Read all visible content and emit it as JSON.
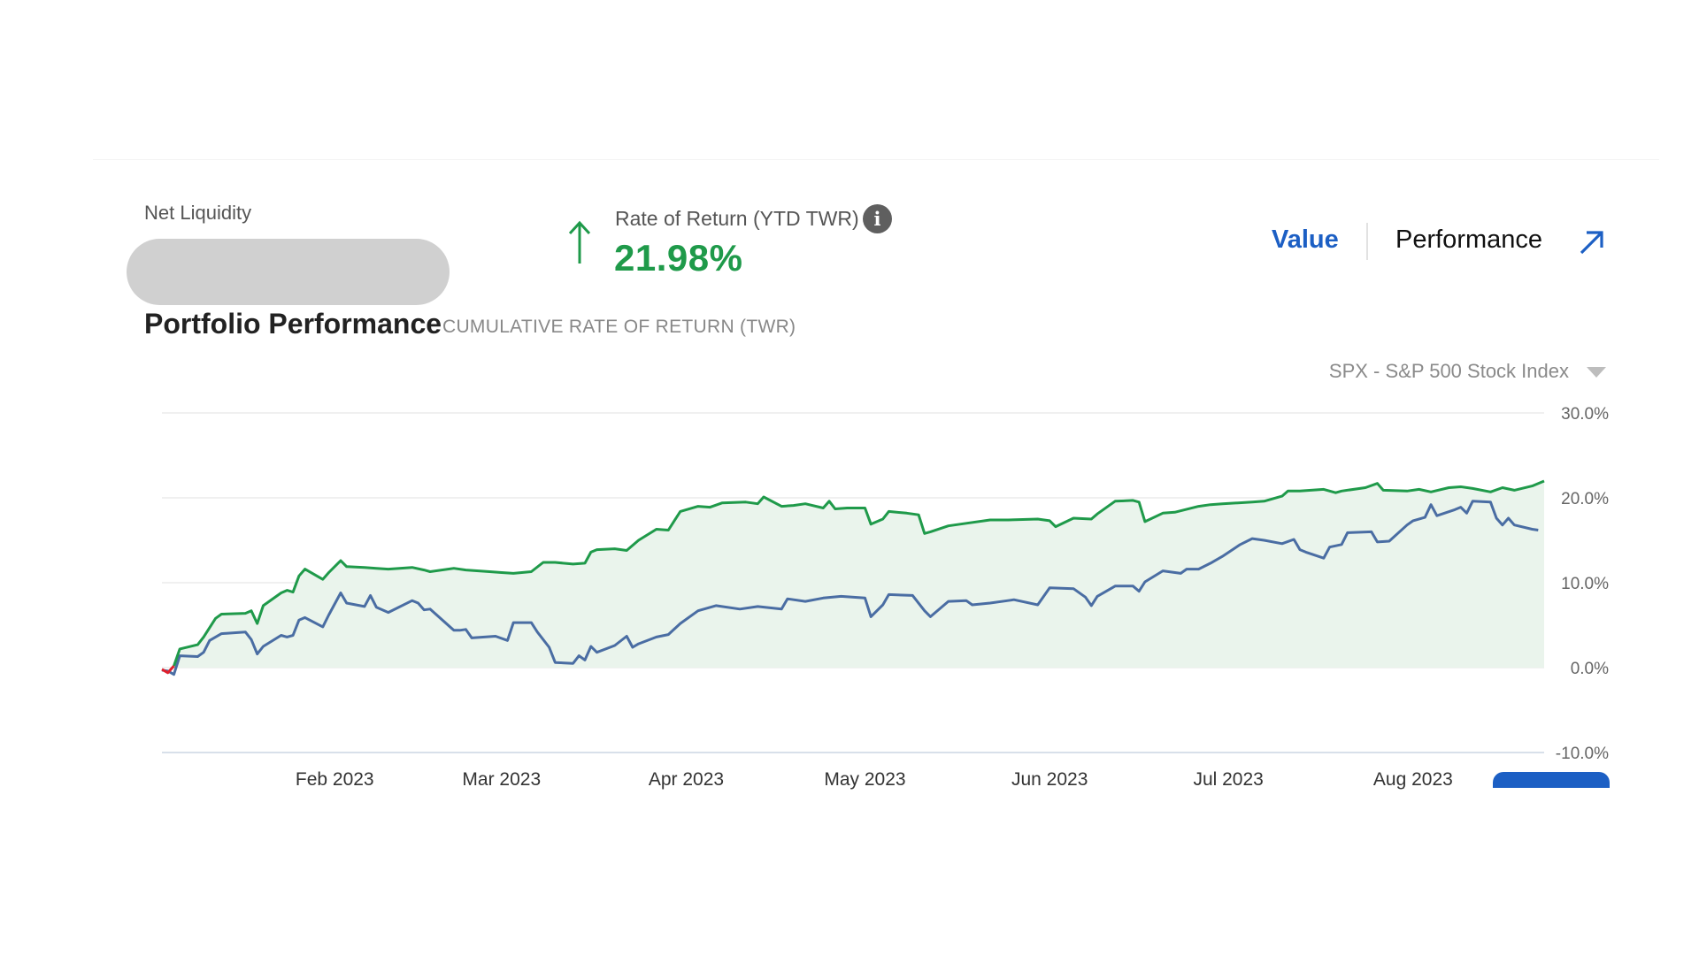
{
  "summary": {
    "net_liquidity_label": "Net Liquidity",
    "ror_label": "Rate of Return (YTD TWR)",
    "ror_value": "21.98%",
    "info_glyph": "i"
  },
  "tabs": {
    "value": "Value",
    "performance": "Performance",
    "active": "Performance"
  },
  "section": {
    "title": "Portfolio Performance",
    "subtitle": "CUMULATIVE RATE OF RETURN (TWR)"
  },
  "benchmark": {
    "selected": "SPX - S&P 500 Stock Index"
  },
  "colors": {
    "portfolio": "#1f9a4a",
    "benchmark": "#4a6da3",
    "area": "#eaf4ec",
    "negative": "#e0202c",
    "accent": "#1c5fc4"
  },
  "icons": {
    "ror": "arrow-up-icon",
    "info": "info-icon",
    "expand": "arrow-up-right-icon",
    "dropdown": "caret-down-icon"
  },
  "chart_data": {
    "type": "line",
    "x_labels": [
      "Feb 2023",
      "Mar 2023",
      "Apr 2023",
      "May 2023",
      "Jun 2023",
      "Jul 2023",
      "Aug 2023"
    ],
    "y_ticks": [
      "30.0%",
      "20.0%",
      "10.0%",
      "0.0%",
      "-10.0%"
    ],
    "ylim": [
      -10,
      30
    ],
    "xlim": [
      "2023-01-03",
      "2023-08-23"
    ],
    "grid": true,
    "series": [
      {
        "id": "portfolio",
        "fill_area": true,
        "points": [
          [
            "2023-01-03",
            -0.2
          ],
          [
            "2023-01-04",
            -0.6
          ],
          [
            "2023-01-05",
            0.2
          ],
          [
            "2023-01-06",
            2.2
          ],
          [
            "2023-01-09",
            2.7
          ],
          [
            "2023-01-10",
            3.6
          ],
          [
            "2023-01-12",
            5.8
          ],
          [
            "2023-01-13",
            6.3
          ],
          [
            "2023-01-17",
            6.4
          ],
          [
            "2023-01-18",
            6.7
          ],
          [
            "2023-01-19",
            5.2
          ],
          [
            "2023-01-20",
            7.3
          ],
          [
            "2023-01-23",
            8.8
          ],
          [
            "2023-01-24",
            9.1
          ],
          [
            "2023-01-25",
            8.9
          ],
          [
            "2023-01-26",
            10.8
          ],
          [
            "2023-01-27",
            11.6
          ],
          [
            "2023-01-30",
            10.4
          ],
          [
            "2023-01-31",
            11.2
          ],
          [
            "2023-02-02",
            12.6
          ],
          [
            "2023-02-03",
            11.9
          ],
          [
            "2023-02-06",
            11.8
          ],
          [
            "2023-02-08",
            11.7
          ],
          [
            "2023-02-10",
            11.6
          ],
          [
            "2023-02-14",
            11.8
          ],
          [
            "2023-02-16",
            11.5
          ],
          [
            "2023-02-17",
            11.3
          ],
          [
            "2023-02-21",
            11.7
          ],
          [
            "2023-02-23",
            11.5
          ],
          [
            "2023-02-27",
            11.3
          ],
          [
            "2023-03-01",
            11.2
          ],
          [
            "2023-03-03",
            11.1
          ],
          [
            "2023-03-06",
            11.3
          ],
          [
            "2023-03-08",
            12.4
          ],
          [
            "2023-03-10",
            12.4
          ],
          [
            "2023-03-13",
            12.2
          ],
          [
            "2023-03-15",
            12.3
          ],
          [
            "2023-03-16",
            13.6
          ],
          [
            "2023-03-17",
            13.9
          ],
          [
            "2023-03-20",
            14.0
          ],
          [
            "2023-03-22",
            13.8
          ],
          [
            "2023-03-24",
            15.0
          ],
          [
            "2023-03-27",
            16.3
          ],
          [
            "2023-03-29",
            16.2
          ],
          [
            "2023-03-31",
            18.4
          ],
          [
            "2023-04-03",
            19.0
          ],
          [
            "2023-04-05",
            18.9
          ],
          [
            "2023-04-07",
            19.4
          ],
          [
            "2023-04-11",
            19.5
          ],
          [
            "2023-04-13",
            19.3
          ],
          [
            "2023-04-14",
            20.1
          ],
          [
            "2023-04-17",
            19.0
          ],
          [
            "2023-04-19",
            19.1
          ],
          [
            "2023-04-21",
            19.3
          ],
          [
            "2023-04-24",
            18.8
          ],
          [
            "2023-04-25",
            19.6
          ],
          [
            "2023-04-26",
            18.7
          ],
          [
            "2023-04-28",
            18.8
          ],
          [
            "2023-05-01",
            18.8
          ],
          [
            "2023-05-02",
            16.9
          ],
          [
            "2023-05-04",
            17.5
          ],
          [
            "2023-05-05",
            18.4
          ],
          [
            "2023-05-08",
            18.2
          ],
          [
            "2023-05-10",
            18.0
          ],
          [
            "2023-05-11",
            15.8
          ],
          [
            "2023-05-12",
            16.0
          ],
          [
            "2023-05-15",
            16.7
          ],
          [
            "2023-05-18",
            17.0
          ],
          [
            "2023-05-22",
            17.4
          ],
          [
            "2023-05-25",
            17.4
          ],
          [
            "2023-05-30",
            17.5
          ],
          [
            "2023-06-01",
            17.3
          ],
          [
            "2023-06-02",
            16.6
          ],
          [
            "2023-06-05",
            17.6
          ],
          [
            "2023-06-08",
            17.5
          ],
          [
            "2023-06-09",
            18.1
          ],
          [
            "2023-06-12",
            19.6
          ],
          [
            "2023-06-15",
            19.7
          ],
          [
            "2023-06-16",
            19.5
          ],
          [
            "2023-06-17",
            17.2
          ],
          [
            "2023-06-20",
            18.2
          ],
          [
            "2023-06-22",
            18.3
          ],
          [
            "2023-06-26",
            19.0
          ],
          [
            "2023-06-28",
            19.2
          ],
          [
            "2023-06-30",
            19.3
          ],
          [
            "2023-07-05",
            19.5
          ],
          [
            "2023-07-07",
            19.6
          ],
          [
            "2023-07-10",
            20.2
          ],
          [
            "2023-07-11",
            20.8
          ],
          [
            "2023-07-13",
            20.8
          ],
          [
            "2023-07-17",
            21.0
          ],
          [
            "2023-07-19",
            20.6
          ],
          [
            "2023-07-20",
            20.8
          ],
          [
            "2023-07-24",
            21.2
          ],
          [
            "2023-07-26",
            21.7
          ],
          [
            "2023-07-27",
            20.9
          ],
          [
            "2023-07-31",
            20.8
          ],
          [
            "2023-08-02",
            21.0
          ],
          [
            "2023-08-04",
            20.7
          ],
          [
            "2023-08-07",
            21.2
          ],
          [
            "2023-08-09",
            21.3
          ],
          [
            "2023-08-11",
            21.1
          ],
          [
            "2023-08-14",
            20.7
          ],
          [
            "2023-08-16",
            21.2
          ],
          [
            "2023-08-18",
            20.9
          ],
          [
            "2023-08-21",
            21.4
          ],
          [
            "2023-08-23",
            21.98
          ]
        ]
      },
      {
        "id": "benchmark",
        "points": [
          [
            "2023-01-03",
            -0.3
          ],
          [
            "2023-01-04",
            -0.4
          ],
          [
            "2023-01-05",
            -0.8
          ],
          [
            "2023-01-06",
            1.4
          ],
          [
            "2023-01-09",
            1.3
          ],
          [
            "2023-01-10",
            1.8
          ],
          [
            "2023-01-11",
            3.2
          ],
          [
            "2023-01-13",
            4.0
          ],
          [
            "2023-01-17",
            4.2
          ],
          [
            "2023-01-18",
            3.3
          ],
          [
            "2023-01-19",
            1.6
          ],
          [
            "2023-01-20",
            2.5
          ],
          [
            "2023-01-23",
            3.8
          ],
          [
            "2023-01-24",
            3.6
          ],
          [
            "2023-01-25",
            3.8
          ],
          [
            "2023-01-26",
            5.6
          ],
          [
            "2023-01-27",
            5.9
          ],
          [
            "2023-01-30",
            4.8
          ],
          [
            "2023-01-31",
            6.2
          ],
          [
            "2023-02-02",
            8.8
          ],
          [
            "2023-02-03",
            7.6
          ],
          [
            "2023-02-06",
            7.2
          ],
          [
            "2023-02-07",
            8.5
          ],
          [
            "2023-02-08",
            7.1
          ],
          [
            "2023-02-10",
            6.5
          ],
          [
            "2023-02-14",
            7.9
          ],
          [
            "2023-02-15",
            7.6
          ],
          [
            "2023-02-16",
            6.8
          ],
          [
            "2023-02-17",
            6.9
          ],
          [
            "2023-02-21",
            4.4
          ],
          [
            "2023-02-22",
            4.4
          ],
          [
            "2023-02-23",
            4.5
          ],
          [
            "2023-02-24",
            3.5
          ],
          [
            "2023-02-28",
            3.7
          ],
          [
            "2023-03-02",
            3.2
          ],
          [
            "2023-03-03",
            5.3
          ],
          [
            "2023-03-06",
            5.3
          ],
          [
            "2023-03-07",
            4.2
          ],
          [
            "2023-03-09",
            2.4
          ],
          [
            "2023-03-10",
            0.6
          ],
          [
            "2023-03-13",
            0.5
          ],
          [
            "2023-03-14",
            1.4
          ],
          [
            "2023-03-15",
            0.9
          ],
          [
            "2023-03-16",
            2.5
          ],
          [
            "2023-03-17",
            1.8
          ],
          [
            "2023-03-20",
            2.6
          ],
          [
            "2023-03-22",
            3.7
          ],
          [
            "2023-03-23",
            2.4
          ],
          [
            "2023-03-24",
            2.8
          ],
          [
            "2023-03-27",
            3.6
          ],
          [
            "2023-03-29",
            3.9
          ],
          [
            "2023-03-31",
            5.2
          ],
          [
            "2023-04-03",
            6.7
          ],
          [
            "2023-04-06",
            7.3
          ],
          [
            "2023-04-10",
            6.9
          ],
          [
            "2023-04-13",
            7.2
          ],
          [
            "2023-04-17",
            6.9
          ],
          [
            "2023-04-18",
            8.1
          ],
          [
            "2023-04-21",
            7.8
          ],
          [
            "2023-04-24",
            8.2
          ],
          [
            "2023-04-27",
            8.4
          ],
          [
            "2023-05-01",
            8.2
          ],
          [
            "2023-05-02",
            6.0
          ],
          [
            "2023-05-04",
            7.4
          ],
          [
            "2023-05-05",
            8.6
          ],
          [
            "2023-05-09",
            8.5
          ],
          [
            "2023-05-11",
            6.7
          ],
          [
            "2023-05-12",
            6.0
          ],
          [
            "2023-05-15",
            7.8
          ],
          [
            "2023-05-18",
            7.9
          ],
          [
            "2023-05-19",
            7.4
          ],
          [
            "2023-05-22",
            7.6
          ],
          [
            "2023-05-25",
            7.9
          ],
          [
            "2023-05-26",
            8.0
          ],
          [
            "2023-05-30",
            7.4
          ],
          [
            "2023-06-01",
            9.4
          ],
          [
            "2023-06-05",
            9.3
          ],
          [
            "2023-06-07",
            8.3
          ],
          [
            "2023-06-08",
            7.3
          ],
          [
            "2023-06-09",
            8.4
          ],
          [
            "2023-06-12",
            9.6
          ],
          [
            "2023-06-15",
            9.6
          ],
          [
            "2023-06-16",
            9.0
          ],
          [
            "2023-06-17",
            10.1
          ],
          [
            "2023-06-20",
            11.4
          ],
          [
            "2023-06-23",
            11.1
          ],
          [
            "2023-06-24",
            11.6
          ],
          [
            "2023-06-26",
            11.6
          ],
          [
            "2023-06-28",
            12.3
          ],
          [
            "2023-06-30",
            13.1
          ],
          [
            "2023-07-03",
            14.5
          ],
          [
            "2023-07-05",
            15.2
          ],
          [
            "2023-07-07",
            15.0
          ],
          [
            "2023-07-10",
            14.6
          ],
          [
            "2023-07-12",
            15.1
          ],
          [
            "2023-07-13",
            13.9
          ],
          [
            "2023-07-14",
            13.6
          ],
          [
            "2023-07-17",
            12.9
          ],
          [
            "2023-07-18",
            14.2
          ],
          [
            "2023-07-20",
            14.5
          ],
          [
            "2023-07-21",
            15.9
          ],
          [
            "2023-07-25",
            16.0
          ],
          [
            "2023-07-26",
            14.8
          ],
          [
            "2023-07-28",
            14.9
          ],
          [
            "2023-07-31",
            16.8
          ],
          [
            "2023-08-01",
            17.3
          ],
          [
            "2023-08-03",
            17.7
          ],
          [
            "2023-08-04",
            19.2
          ],
          [
            "2023-08-05",
            17.9
          ],
          [
            "2023-08-08",
            18.6
          ],
          [
            "2023-08-09",
            18.9
          ],
          [
            "2023-08-10",
            18.2
          ],
          [
            "2023-08-11",
            19.6
          ],
          [
            "2023-08-14",
            19.5
          ],
          [
            "2023-08-15",
            17.6
          ],
          [
            "2023-08-16",
            16.8
          ],
          [
            "2023-08-17",
            17.6
          ],
          [
            "2023-08-18",
            16.8
          ],
          [
            "2023-08-21",
            16.3
          ],
          [
            "2023-08-22",
            16.2
          ]
        ]
      }
    ]
  }
}
